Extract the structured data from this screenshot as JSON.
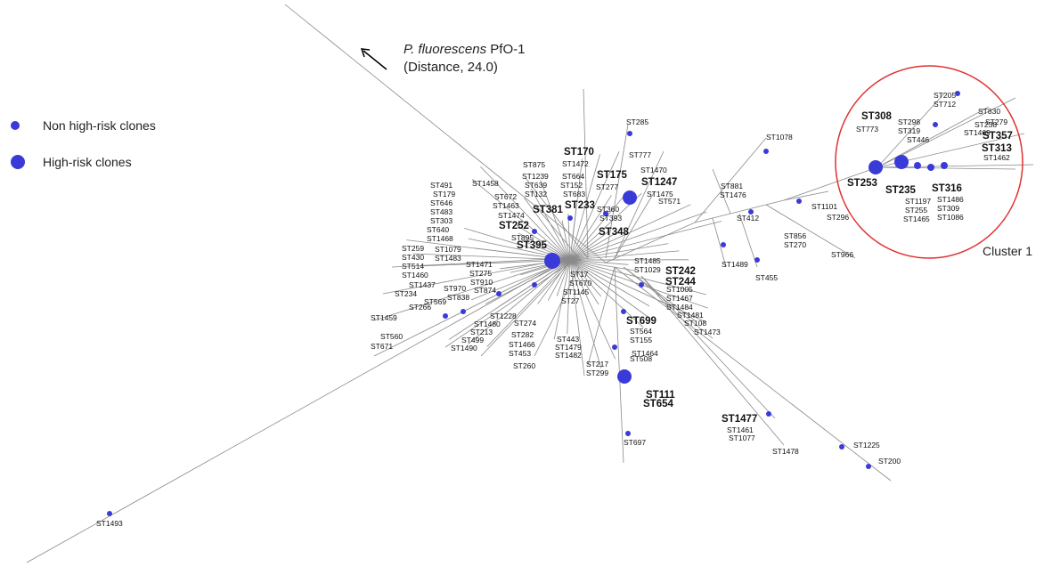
{
  "annotation": {
    "species": "P. fluorescens",
    "strain": "PfO-1",
    "distance": "(Distance, 24.0)"
  },
  "legend": [
    {
      "label": "Non high-risk clones"
    },
    {
      "label": "High-risk clones"
    }
  ],
  "cluster_label": "Cluster 1",
  "high_risk": [
    "ST308",
    "ST357",
    "ST313",
    "ST253",
    "ST235",
    "ST316",
    "ST170",
    "ST175",
    "ST1247",
    "ST381",
    "ST233",
    "ST252",
    "ST395",
    "ST348",
    "ST242",
    "ST244",
    "ST699",
    "ST111",
    "ST654",
    "ST1477"
  ],
  "clones": [
    "ST205",
    "ST712",
    "ST830",
    "ST298",
    "ST238",
    "ST319",
    "ST1469",
    "ST446",
    "ST279",
    "ST1462",
    "ST773",
    "ST1197",
    "ST255",
    "ST1465",
    "ST1486",
    "ST309",
    "ST1086",
    "ST285",
    "ST1472",
    "ST777",
    "ST1470",
    "ST875",
    "ST1239",
    "ST639",
    "ST132",
    "ST664",
    "ST152",
    "ST683",
    "ST277",
    "ST1475",
    "ST571",
    "ST1458",
    "ST672",
    "ST1463",
    "ST1474",
    "ST393",
    "ST360",
    "ST491",
    "ST179",
    "ST646",
    "ST483",
    "ST303",
    "ST640",
    "ST1468",
    "ST895",
    "ST1078",
    "ST881",
    "ST1476",
    "ST1101",
    "ST296",
    "ST412",
    "ST856",
    "ST270",
    "ST966",
    "ST1489",
    "ST455",
    "ST1485",
    "ST1029",
    "ST1005",
    "ST1467",
    "ST1484",
    "ST1481",
    "ST108",
    "ST1473",
    "ST564",
    "ST155",
    "ST1464",
    "ST508",
    "ST217",
    "ST299",
    "ST697",
    "ST443",
    "ST1479",
    "ST1482",
    "ST1466",
    "ST453",
    "ST260",
    "ST274",
    "ST282",
    "ST1228",
    "ST1480",
    "ST213",
    "ST499",
    "ST1490",
    "ST17",
    "ST670",
    "ST1145",
    "ST27",
    "ST259",
    "ST430",
    "ST514",
    "ST1460",
    "ST1437",
    "ST234",
    "ST266",
    "ST1459",
    "ST560",
    "ST671",
    "ST1079",
    "ST1483",
    "ST1471",
    "ST275",
    "ST910",
    "ST874",
    "ST970",
    "ST838",
    "ST569",
    "ST1461",
    "ST1077",
    "ST1478",
    "ST1225",
    "ST200",
    "ST1493"
  ]
}
